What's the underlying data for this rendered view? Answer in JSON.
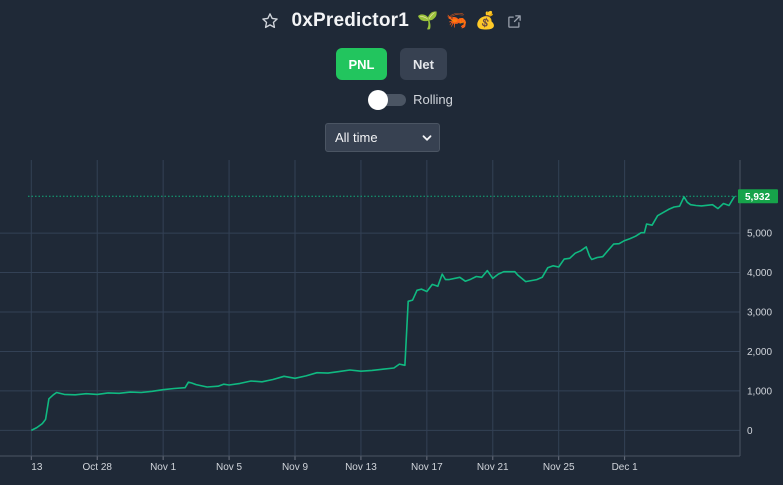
{
  "header": {
    "title": "0xPredictor1",
    "badges": [
      {
        "icon": "seedling-icon",
        "glyph": "🌱"
      },
      {
        "icon": "shrimp-icon",
        "glyph": "🦐"
      },
      {
        "icon": "money-bag-icon",
        "glyph": "💰"
      }
    ]
  },
  "toolbar": {
    "pnl_label": "PNL",
    "net_label": "Net"
  },
  "rolling": {
    "label": "Rolling",
    "enabled": false
  },
  "range_select": {
    "value": "All time"
  },
  "colors": {
    "accent": "#22c55e",
    "line": "#10b981",
    "background": "#1f2937"
  },
  "chart_data": {
    "type": "line",
    "series": [
      {
        "points": [
          [
            0,
            0
          ],
          [
            0.5,
            70
          ],
          [
            1,
            170
          ],
          [
            1.3,
            280
          ],
          [
            1.6,
            800
          ],
          [
            2,
            900
          ],
          [
            2.3,
            960
          ],
          [
            3,
            910
          ],
          [
            4,
            900
          ],
          [
            5,
            930
          ],
          [
            6,
            910
          ],
          [
            7,
            950
          ],
          [
            8,
            940
          ],
          [
            9,
            970
          ],
          [
            10,
            960
          ],
          [
            11,
            990
          ],
          [
            12,
            1030
          ],
          [
            13,
            1060
          ],
          [
            14,
            1080
          ],
          [
            14.3,
            1220
          ],
          [
            14.6,
            1200
          ],
          [
            15,
            1160
          ],
          [
            16,
            1100
          ],
          [
            17,
            1120
          ],
          [
            17.5,
            1170
          ],
          [
            18,
            1150
          ],
          [
            19,
            1190
          ],
          [
            20,
            1250
          ],
          [
            21,
            1230
          ],
          [
            22,
            1290
          ],
          [
            23,
            1370
          ],
          [
            24,
            1320
          ],
          [
            25,
            1380
          ],
          [
            26,
            1460
          ],
          [
            27,
            1450
          ],
          [
            28,
            1490
          ],
          [
            29,
            1530
          ],
          [
            30,
            1500
          ],
          [
            31,
            1520
          ],
          [
            32,
            1550
          ],
          [
            33,
            1580
          ],
          [
            33.5,
            1680
          ],
          [
            34,
            1650
          ],
          [
            34.3,
            3270
          ],
          [
            34.7,
            3300
          ],
          [
            35.1,
            3550
          ],
          [
            35.5,
            3580
          ],
          [
            36,
            3520
          ],
          [
            36.5,
            3700
          ],
          [
            37,
            3650
          ],
          [
            37.4,
            3960
          ],
          [
            37.7,
            3820
          ],
          [
            38,
            3820
          ],
          [
            39,
            3880
          ],
          [
            39.5,
            3780
          ],
          [
            40,
            3830
          ],
          [
            40.5,
            3900
          ],
          [
            41,
            3880
          ],
          [
            41.5,
            4050
          ],
          [
            42,
            3850
          ],
          [
            42.5,
            3960
          ],
          [
            43,
            4020
          ],
          [
            44,
            4020
          ],
          [
            44.3,
            3930
          ],
          [
            45,
            3770
          ],
          [
            46,
            3820
          ],
          [
            46.5,
            3880
          ],
          [
            47,
            4120
          ],
          [
            47.5,
            4170
          ],
          [
            48,
            4140
          ],
          [
            48.5,
            4340
          ],
          [
            49,
            4360
          ],
          [
            49.5,
            4490
          ],
          [
            50,
            4550
          ],
          [
            50.5,
            4650
          ],
          [
            50.8,
            4420
          ],
          [
            51,
            4330
          ],
          [
            51.5,
            4380
          ],
          [
            52,
            4400
          ],
          [
            52.5,
            4560
          ],
          [
            53,
            4720
          ],
          [
            53.5,
            4730
          ],
          [
            54,
            4810
          ],
          [
            54.5,
            4860
          ],
          [
            55,
            4920
          ],
          [
            55.5,
            5010
          ],
          [
            55.8,
            5010
          ],
          [
            56,
            5230
          ],
          [
            56.5,
            5200
          ],
          [
            57,
            5440
          ],
          [
            57.5,
            5520
          ],
          [
            58,
            5600
          ],
          [
            58.5,
            5660
          ],
          [
            59,
            5680
          ],
          [
            59.4,
            5920
          ],
          [
            59.7,
            5780
          ],
          [
            60,
            5720
          ],
          [
            60.5,
            5700
          ],
          [
            61,
            5690
          ],
          [
            62,
            5720
          ],
          [
            62.5,
            5620
          ],
          [
            63,
            5750
          ],
          [
            63.5,
            5700
          ],
          [
            64,
            5932
          ]
        ]
      }
    ],
    "x_ticks": [
      {
        "x": 0,
        "label": "13"
      },
      {
        "x": 6,
        "label": "Oct 28"
      },
      {
        "x": 12,
        "label": "Nov 1"
      },
      {
        "x": 18,
        "label": "Nov 5"
      },
      {
        "x": 24,
        "label": "Nov 9"
      },
      {
        "x": 30,
        "label": "Nov 13"
      },
      {
        "x": 36,
        "label": "Nov 17"
      },
      {
        "x": 42,
        "label": "Nov 21"
      },
      {
        "x": 48,
        "label": "Nov 25"
      },
      {
        "x": 54,
        "label": "Dec 1"
      }
    ],
    "y_ticks": [
      {
        "value": 0,
        "label": "0"
      },
      {
        "value": 1000,
        "label": "1,000"
      },
      {
        "value": 2000,
        "label": "2,000"
      },
      {
        "value": 3000,
        "label": "3,000"
      },
      {
        "value": 4000,
        "label": "4,000"
      },
      {
        "value": 5000,
        "label": "5,000"
      }
    ],
    "last_value_label": "5,932",
    "last_value": 5932,
    "xlim": [
      -0.3,
      64.5
    ],
    "ylim": [
      -650,
      6700
    ],
    "grid": true
  }
}
